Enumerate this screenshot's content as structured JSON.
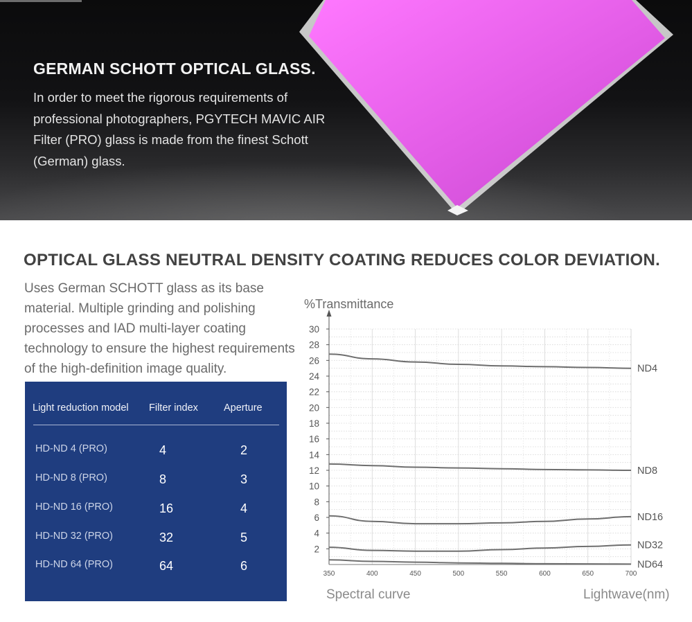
{
  "hero": {
    "title": "GERMAN SCHOTT OPTICAL GLASS.",
    "text": "In order to meet the rigorous requirements of professional photographers, PGYTECH MAVIC AIR Filter (PRO) glass is made from the finest Schott (German) glass."
  },
  "section": {
    "title": "OPTICAL GLASS NEUTRAL DENSITY COATING REDUCES COLOR DEVIATION.",
    "text": "Uses German SCHOTT glass as its base material. Multiple grinding and polishing processes and IAD multi-layer coating technology to ensure the highest requirements of the high-definition image quality."
  },
  "table": {
    "headers": [
      "Light reduction model",
      "Filter index",
      "Aperture"
    ],
    "rows": [
      {
        "model": "HD-ND 4 (PRO)",
        "index": "4",
        "aperture": "2"
      },
      {
        "model": "HD-ND 8 (PRO)",
        "index": "8",
        "aperture": "3"
      },
      {
        "model": "HD-ND 16 (PRO)",
        "index": "16",
        "aperture": "4"
      },
      {
        "model": "HD-ND 32 (PRO)",
        "index": "32",
        "aperture": "5"
      },
      {
        "model": "HD-ND 64 (PRO)",
        "index": "64",
        "aperture": "6"
      }
    ]
  },
  "chart_captions": {
    "left": "Spectral curve",
    "right": "Lightwave(nm)"
  },
  "colors": {
    "table_bg": "#1f3d7f",
    "curve": "#6e6e6e",
    "filter_glass": "#f06ef5"
  },
  "chart_data": {
    "type": "line",
    "ylabel": "%Transmittance",
    "xlim": [
      350,
      700
    ],
    "ylim": [
      0,
      30
    ],
    "x_ticks": [
      "350",
      "400",
      "450",
      "500",
      "550",
      "600",
      "650",
      "700"
    ],
    "y_ticks": [
      "2",
      "4",
      "6",
      "8",
      "10",
      "12",
      "14",
      "16",
      "18",
      "20",
      "22",
      "24",
      "26",
      "28",
      "30"
    ],
    "grid": true,
    "x": [
      350,
      400,
      450,
      500,
      550,
      600,
      650,
      700
    ],
    "series": [
      {
        "name": "ND4",
        "values": [
          26.8,
          26.2,
          25.8,
          25.5,
          25.3,
          25.2,
          25.1,
          25.0
        ]
      },
      {
        "name": "ND8",
        "values": [
          12.8,
          12.6,
          12.4,
          12.3,
          12.2,
          12.1,
          12.05,
          12.0
        ]
      },
      {
        "name": "ND16",
        "values": [
          6.2,
          5.5,
          5.2,
          5.2,
          5.3,
          5.5,
          5.8,
          6.1
        ]
      },
      {
        "name": "ND32",
        "values": [
          2.2,
          1.8,
          1.7,
          1.7,
          1.9,
          2.1,
          2.3,
          2.5
        ]
      },
      {
        "name": "ND64",
        "values": [
          0.6,
          0.4,
          0.3,
          0.2,
          0.15,
          0.1,
          0.08,
          0.05
        ]
      }
    ]
  }
}
